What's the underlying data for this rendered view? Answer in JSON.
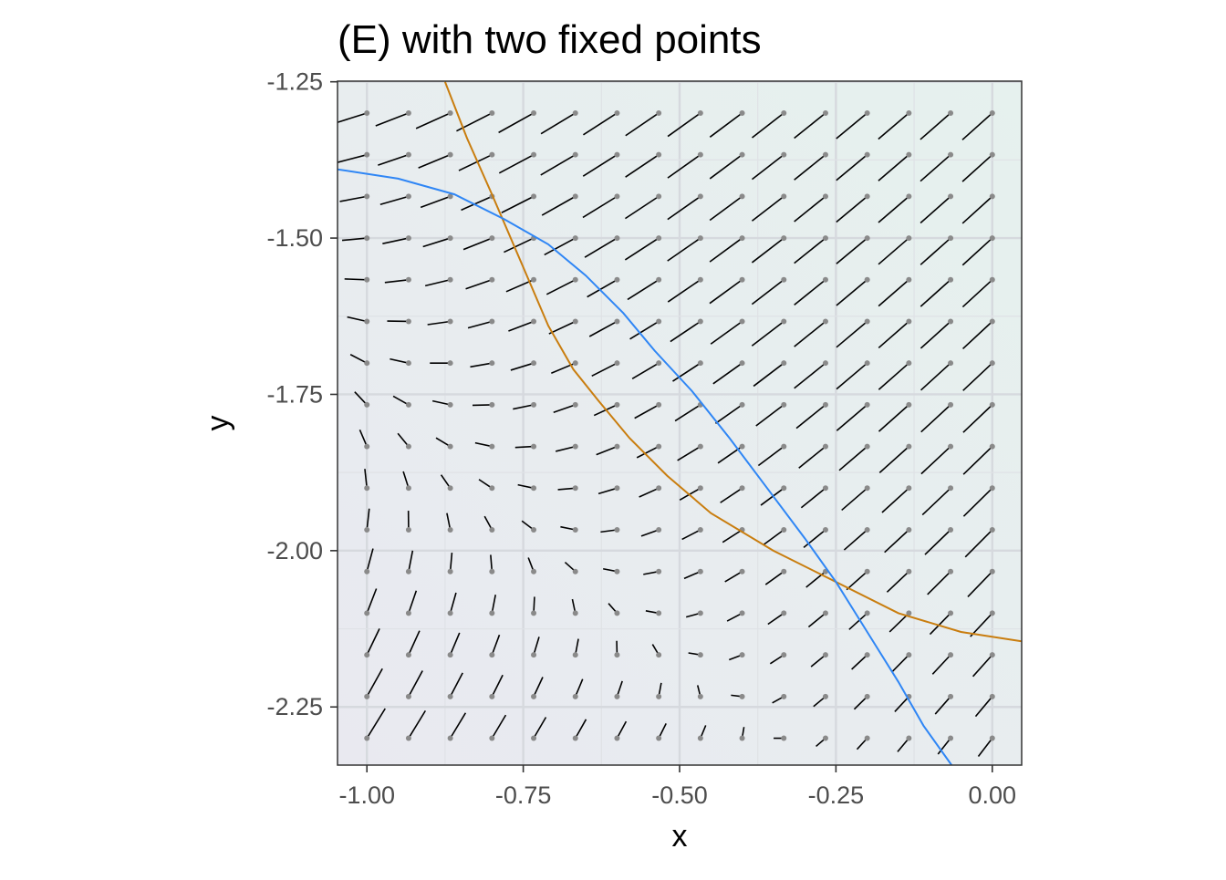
{
  "chart_data": {
    "type": "vector-field",
    "title": "(E) with two fixed points",
    "xlabel": "x",
    "ylabel": "y",
    "xlim": [
      -1.047,
      0.047
    ],
    "ylim": [
      -2.343,
      -1.249
    ],
    "x_ticks": [
      -1.0,
      -0.75,
      -0.5,
      -0.25,
      0.0
    ],
    "x_tick_labels": [
      "-1.00",
      "-0.75",
      "-0.50",
      "-0.25",
      "0.00"
    ],
    "y_ticks": [
      -1.25,
      -1.5,
      -1.75,
      -2.0,
      -2.25
    ],
    "y_tick_labels": [
      "-1.25",
      "-1.50",
      "-1.75",
      "-2.00",
      "-2.25"
    ],
    "grid": true,
    "field": {
      "x_range": [
        -1.0,
        0.0
      ],
      "y_range": [
        -2.3,
        -1.3
      ],
      "grid_n": 16,
      "segment_color": "#000000",
      "start_point_color": "#8a8a8a"
    },
    "nullclines": [
      {
        "name": "",
        "color": "#c97d0e",
        "points": [
          [
            -0.875,
            -1.25
          ],
          [
            -0.84,
            -1.34
          ],
          [
            -0.8,
            -1.43
          ],
          [
            -0.77,
            -1.5
          ],
          [
            -0.74,
            -1.57
          ],
          [
            -0.71,
            -1.64
          ],
          [
            -0.67,
            -1.71
          ],
          [
            -0.63,
            -1.76
          ],
          [
            -0.58,
            -1.82
          ],
          [
            -0.52,
            -1.88
          ],
          [
            -0.45,
            -1.94
          ],
          [
            -0.35,
            -2.0
          ],
          [
            -0.25,
            -2.05
          ],
          [
            -0.15,
            -2.1
          ],
          [
            -0.05,
            -2.13
          ],
          [
            0.047,
            -2.145
          ]
        ]
      },
      {
        "name": "",
        "color": "#2f86f5",
        "points": [
          [
            -1.047,
            -1.39
          ],
          [
            -0.95,
            -1.405
          ],
          [
            -0.86,
            -1.43
          ],
          [
            -0.78,
            -1.47
          ],
          [
            -0.71,
            -1.51
          ],
          [
            -0.65,
            -1.56
          ],
          [
            -0.59,
            -1.62
          ],
          [
            -0.54,
            -1.68
          ],
          [
            -0.48,
            -1.745
          ],
          [
            -0.42,
            -1.82
          ],
          [
            -0.36,
            -1.9
          ],
          [
            -0.3,
            -1.98
          ],
          [
            -0.25,
            -2.05
          ],
          [
            -0.2,
            -2.13
          ],
          [
            -0.15,
            -2.21
          ],
          [
            -0.11,
            -2.28
          ],
          [
            -0.065,
            -2.343
          ]
        ]
      }
    ]
  }
}
